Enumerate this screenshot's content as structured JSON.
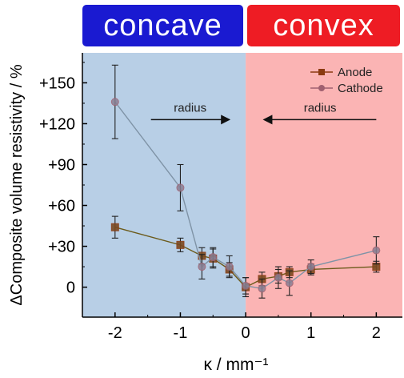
{
  "banners": {
    "left": "concave",
    "right": "convex"
  },
  "colors": {
    "concave_region": "#b8cfe6",
    "convex_region": "#fbb4b4",
    "banner_concave": "#1a1ad1",
    "banner_convex": "#ee1c24",
    "anode": "#8b3a10",
    "cathode": "#a06070",
    "axis": "#000000"
  },
  "chart_data": {
    "type": "scatter",
    "xlabel": "κ / mm⁻¹",
    "ylabel": "ΔComposite volume resistivity / %",
    "xlim": [
      -2.5,
      2.4
    ],
    "ylim": [
      -22,
      172
    ],
    "x_ticks": [
      -2,
      -1,
      0,
      1,
      2
    ],
    "x_tick_labels": [
      "-2",
      "-1",
      "0",
      "1",
      "2"
    ],
    "y_ticks": [
      0,
      30,
      60,
      90,
      120,
      150
    ],
    "y_tick_labels": [
      "0",
      "+30",
      "+60",
      "+90",
      "+120",
      "+150"
    ],
    "grid": false,
    "legend_position": "top-right",
    "regions": [
      {
        "label": "concave",
        "x_range": [
          -2.5,
          0
        ]
      },
      {
        "label": "convex",
        "x_range": [
          0,
          2.4
        ]
      }
    ],
    "annotations": [
      {
        "text": "radius",
        "direction": "right",
        "x_from": -1.45,
        "x_to": -0.25,
        "y": 123
      },
      {
        "text": "radius",
        "direction": "left",
        "x_from": 2.0,
        "x_to": 0.28,
        "y": 123
      }
    ],
    "series": [
      {
        "name": "Anode",
        "marker": "square",
        "points": [
          {
            "x": -2.0,
            "y": 44,
            "err": 8
          },
          {
            "x": -1.0,
            "y": 31,
            "err": 5
          },
          {
            "x": -0.67,
            "y": 23,
            "err": 6
          },
          {
            "x": -0.5,
            "y": 21,
            "err": 7
          },
          {
            "x": -0.25,
            "y": 13,
            "err": 5
          },
          {
            "x": 0.0,
            "y": 0,
            "err": 7
          },
          {
            "x": 0.25,
            "y": 6,
            "err": 5
          },
          {
            "x": 0.5,
            "y": 8,
            "err": 5
          },
          {
            "x": 0.67,
            "y": 11,
            "err": 4
          },
          {
            "x": 1.0,
            "y": 13,
            "err": 4
          },
          {
            "x": 2.0,
            "y": 15,
            "err": 4
          }
        ]
      },
      {
        "name": "Cathode",
        "marker": "circle",
        "points": [
          {
            "x": -2.0,
            "y": 136,
            "err": 27
          },
          {
            "x": -1.0,
            "y": 73,
            "err": 17
          },
          {
            "x": -0.67,
            "y": 15,
            "err": 9
          },
          {
            "x": -0.5,
            "y": 22,
            "err": 7
          },
          {
            "x": -0.25,
            "y": 15,
            "err": 8
          },
          {
            "x": 0.0,
            "y": 1,
            "err": 6
          },
          {
            "x": 0.25,
            "y": -1,
            "err": 7
          },
          {
            "x": 0.5,
            "y": 7,
            "err": 8
          },
          {
            "x": 0.67,
            "y": 3,
            "err": 9
          },
          {
            "x": 1.0,
            "y": 15,
            "err": 5
          },
          {
            "x": 2.0,
            "y": 27,
            "err": 10
          }
        ]
      }
    ]
  }
}
